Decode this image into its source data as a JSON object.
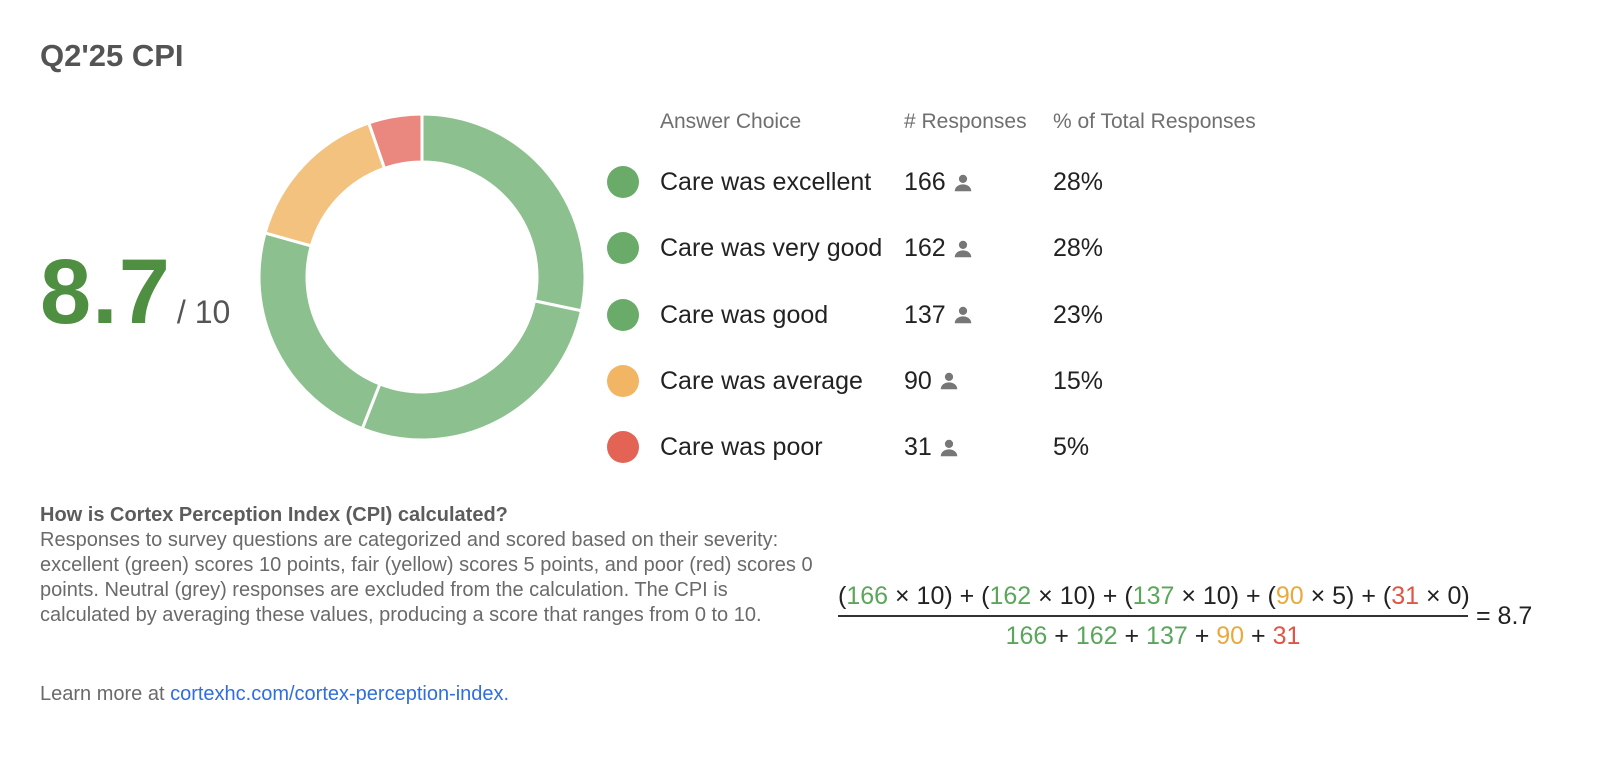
{
  "title": "Q2'25 CPI",
  "score": {
    "value": "8.7",
    "denominator": "/ 10"
  },
  "legend": {
    "headers": {
      "choice": "Answer Choice",
      "responses": "# Responses",
      "percent": "% of Total Responses"
    },
    "rows": [
      {
        "label": "Care was excellent",
        "count": "166",
        "percent": "28%",
        "color": "#6aab6a"
      },
      {
        "label": "Care was very good",
        "count": "162",
        "percent": "28%",
        "color": "#6aab6a"
      },
      {
        "label": "Care was good",
        "count": "137",
        "percent": "23%",
        "color": "#6aab6a"
      },
      {
        "label": "Care was average",
        "count": "90",
        "percent": "15%",
        "color": "#f2b563"
      },
      {
        "label": "Care was poor",
        "count": "31",
        "percent": "5%",
        "color": "#e36455"
      }
    ]
  },
  "chart_data": {
    "type": "pie",
    "variant": "donut",
    "categories": [
      "Care was excellent",
      "Care was very good",
      "Care was good",
      "Care was average",
      "Care was poor"
    ],
    "values": [
      166,
      162,
      137,
      90,
      31
    ],
    "colors": [
      "#8cc08e",
      "#8cc08e",
      "#8cc08e",
      "#f2c27e",
      "#ea8880"
    ],
    "title": ""
  },
  "explanation": {
    "heading": "How is Cortex Perception Index (CPI) calculated?",
    "body": "Responses to survey questions are categorized and scored based on their severity: excellent (green) scores 10 points, fair (yellow) scores 5 points, and poor (red) scores 0 points. Neutral (grey) responses are excluded from the calculation. The CPI is calculated by averaging these values, producing a score that ranges from 0 to 10.",
    "learn_prefix": "Learn more at ",
    "learn_link": "cortexhc.com/cortex-perception-index."
  },
  "formula": {
    "terms": [
      {
        "count": "166",
        "points": "10",
        "tone": "g"
      },
      {
        "count": "162",
        "points": "10",
        "tone": "g"
      },
      {
        "count": "137",
        "points": "10",
        "tone": "g"
      },
      {
        "count": "90",
        "points": "5",
        "tone": "y"
      },
      {
        "count": "31",
        "points": "0",
        "tone": "r"
      }
    ],
    "result": "= 8.7"
  }
}
